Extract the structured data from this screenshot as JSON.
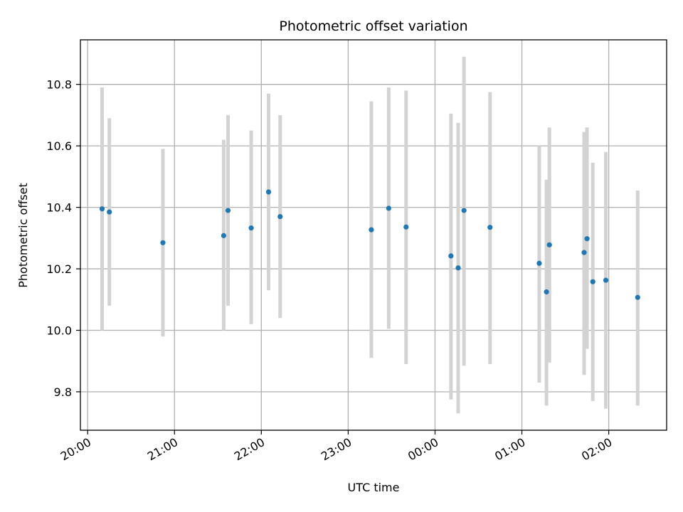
{
  "chart_data": {
    "type": "scatter",
    "title": "Photometric offset variation",
    "xlabel": "UTC time",
    "ylabel": "Photometric offset",
    "x_unit": "time-of-day (hours since 20:00 UTC)",
    "xlim": [
      "19:55",
      "02:40"
    ],
    "ylim": [
      9.675,
      10.945
    ],
    "x_ticks": [
      "20:00",
      "21:00",
      "22:00",
      "23:00",
      "00:00",
      "01:00",
      "02:00"
    ],
    "y_ticks": [
      "9.8",
      "10.0",
      "10.2",
      "10.4",
      "10.6",
      "10.8"
    ],
    "grid": true,
    "point_color": "#1f77b4",
    "errorbar_color": "#d3d3d3",
    "points": [
      {
        "time": "20:10",
        "y": 10.395,
        "lo": 10.0,
        "hi": 10.79
      },
      {
        "time": "20:15",
        "y": 10.385,
        "lo": 10.08,
        "hi": 10.69
      },
      {
        "time": "20:52",
        "y": 10.285,
        "lo": 9.98,
        "hi": 10.59
      },
      {
        "time": "21:34",
        "y": 10.308,
        "lo": 10.0,
        "hi": 10.62
      },
      {
        "time": "21:37",
        "y": 10.39,
        "lo": 10.08,
        "hi": 10.7
      },
      {
        "time": "21:53",
        "y": 10.333,
        "lo": 10.02,
        "hi": 10.65
      },
      {
        "time": "22:05",
        "y": 10.45,
        "lo": 10.13,
        "hi": 10.77
      },
      {
        "time": "22:13",
        "y": 10.37,
        "lo": 10.04,
        "hi": 10.7
      },
      {
        "time": "23:16",
        "y": 10.327,
        "lo": 9.91,
        "hi": 10.745
      },
      {
        "time": "23:28",
        "y": 10.397,
        "lo": 10.005,
        "hi": 10.79
      },
      {
        "time": "23:40",
        "y": 10.336,
        "lo": 9.89,
        "hi": 10.78
      },
      {
        "time": "00:11",
        "y": 10.242,
        "lo": 9.775,
        "hi": 10.705
      },
      {
        "time": "00:16",
        "y": 10.203,
        "lo": 9.73,
        "hi": 10.675
      },
      {
        "time": "00:20",
        "y": 10.39,
        "lo": 9.885,
        "hi": 10.89
      },
      {
        "time": "00:38",
        "y": 10.335,
        "lo": 9.89,
        "hi": 10.775
      },
      {
        "time": "01:12",
        "y": 10.218,
        "lo": 9.83,
        "hi": 10.6
      },
      {
        "time": "01:17",
        "y": 10.125,
        "lo": 9.755,
        "hi": 10.49
      },
      {
        "time": "01:19",
        "y": 10.278,
        "lo": 9.895,
        "hi": 10.66
      },
      {
        "time": "01:43",
        "y": 10.253,
        "lo": 9.855,
        "hi": 10.645
      },
      {
        "time": "01:45",
        "y": 10.298,
        "lo": 9.94,
        "hi": 10.66
      },
      {
        "time": "01:49",
        "y": 10.158,
        "lo": 9.77,
        "hi": 10.545
      },
      {
        "time": "01:58",
        "y": 10.163,
        "lo": 9.745,
        "hi": 10.58
      },
      {
        "time": "02:20",
        "y": 10.107,
        "lo": 9.755,
        "hi": 10.455
      }
    ]
  }
}
